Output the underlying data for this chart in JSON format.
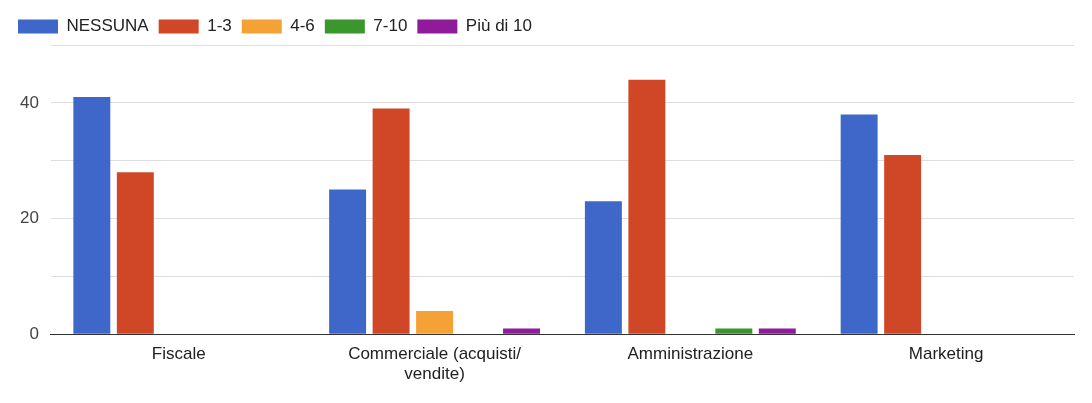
{
  "chart_data": {
    "type": "bar",
    "categories": [
      "Fiscale",
      "Commerciale (acquisti/ vendite)",
      "Amministrazione",
      "Marketing"
    ],
    "series": [
      {
        "name": "NESSUNA",
        "color": "#3f67c9",
        "values": [
          41,
          25,
          23,
          38
        ]
      },
      {
        "name": "1-3",
        "color": "#d04727",
        "values": [
          28,
          39,
          44,
          31
        ]
      },
      {
        "name": "4-6",
        "color": "#f4a235",
        "values": [
          0,
          4,
          0,
          null
        ]
      },
      {
        "name": "7-10",
        "color": "#3c962e",
        "values": [
          0,
          0,
          1,
          null
        ]
      },
      {
        "name": "Più di 10",
        "color": "#8f1b9a",
        "values": [
          0,
          1,
          1,
          null
        ]
      }
    ],
    "ylim": [
      0,
      50
    ],
    "yticks": [
      0,
      {
        "value": 10,
        "label": null
      },
      20,
      {
        "value": 30,
        "label": null
      },
      40,
      {
        "value": 50,
        "label": null
      }
    ],
    "grid": "y",
    "legend": "top left"
  }
}
